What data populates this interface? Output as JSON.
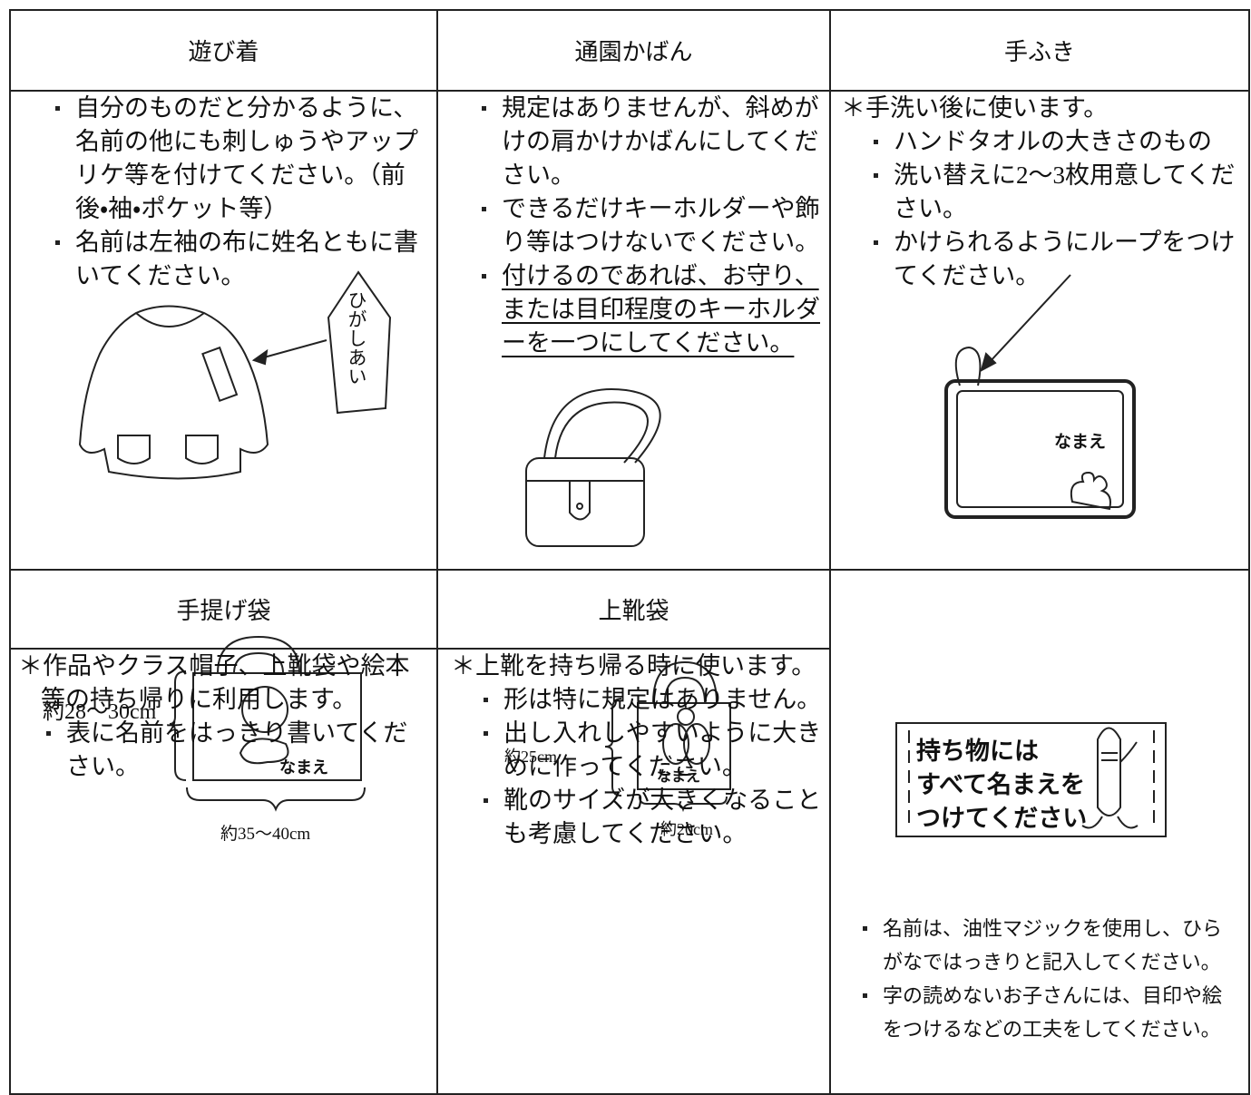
{
  "table": {
    "headers": [
      "遊び着",
      "通園かばん",
      "手ふき",
      "手提げ袋",
      "上靴袋"
    ],
    "cells": [
      {
        "bullets": [
          "自分のものだと分かるように、名前の他にも刺しゅうやアップリケ等を付けてください。（前後・袖・ポケット等）",
          "名前は左袖の布に姓名ともに書いてください。"
        ],
        "tag": "ひがしあい"
      },
      {
        "bullets": [
          "規定はありませんが、斜めがけの肩かけかばんにしてください。",
          "できるだけキーホルダーや飾り等はつけないでください。",
          "付けるのであれば、お守り、または目印程度のキーホルダーを一つにしてください。"
        ]
      },
      {
        "note": "＊手洗い後に使います。",
        "bullets": [
          "ハンドタオルの大きさのもの",
          "洗い替えに2～3枚用意してください。",
          "かけられるようにループをつけてください。"
        ],
        "tag": "なまえ"
      },
      {
        "note": "＊作品やクラス帽子、上靴袋や絵本等の持ち帰りに利用します。",
        "bullets": [
          "表に名前をはっきり書いてください。"
        ],
        "height": "約28～30cm",
        "tag": "なまえ",
        "width": "約35～40cm"
      },
      {
        "note": "＊上靴を持ち帰る時に使います。",
        "bullets": [
          "形は特に規定はありません。",
          "出し入れしやすいように大きめに作ってください。",
          "靴のサイズが大きくなることも考慮してください。"
        ],
        "height": "約25cm",
        "tag": "なまえ",
        "width": "約20cm"
      },
      {
        "sign": [
          "持ち物には",
          "すべて名まえを",
          "つけてください"
        ],
        "bullets": [
          "名前は、油性マジックを使用し、ひらがなではっきりと記入してください。",
          "字の読めないお子さんには、目印や絵をつけるなどの工夫をしてください。"
        ]
      }
    ]
  }
}
